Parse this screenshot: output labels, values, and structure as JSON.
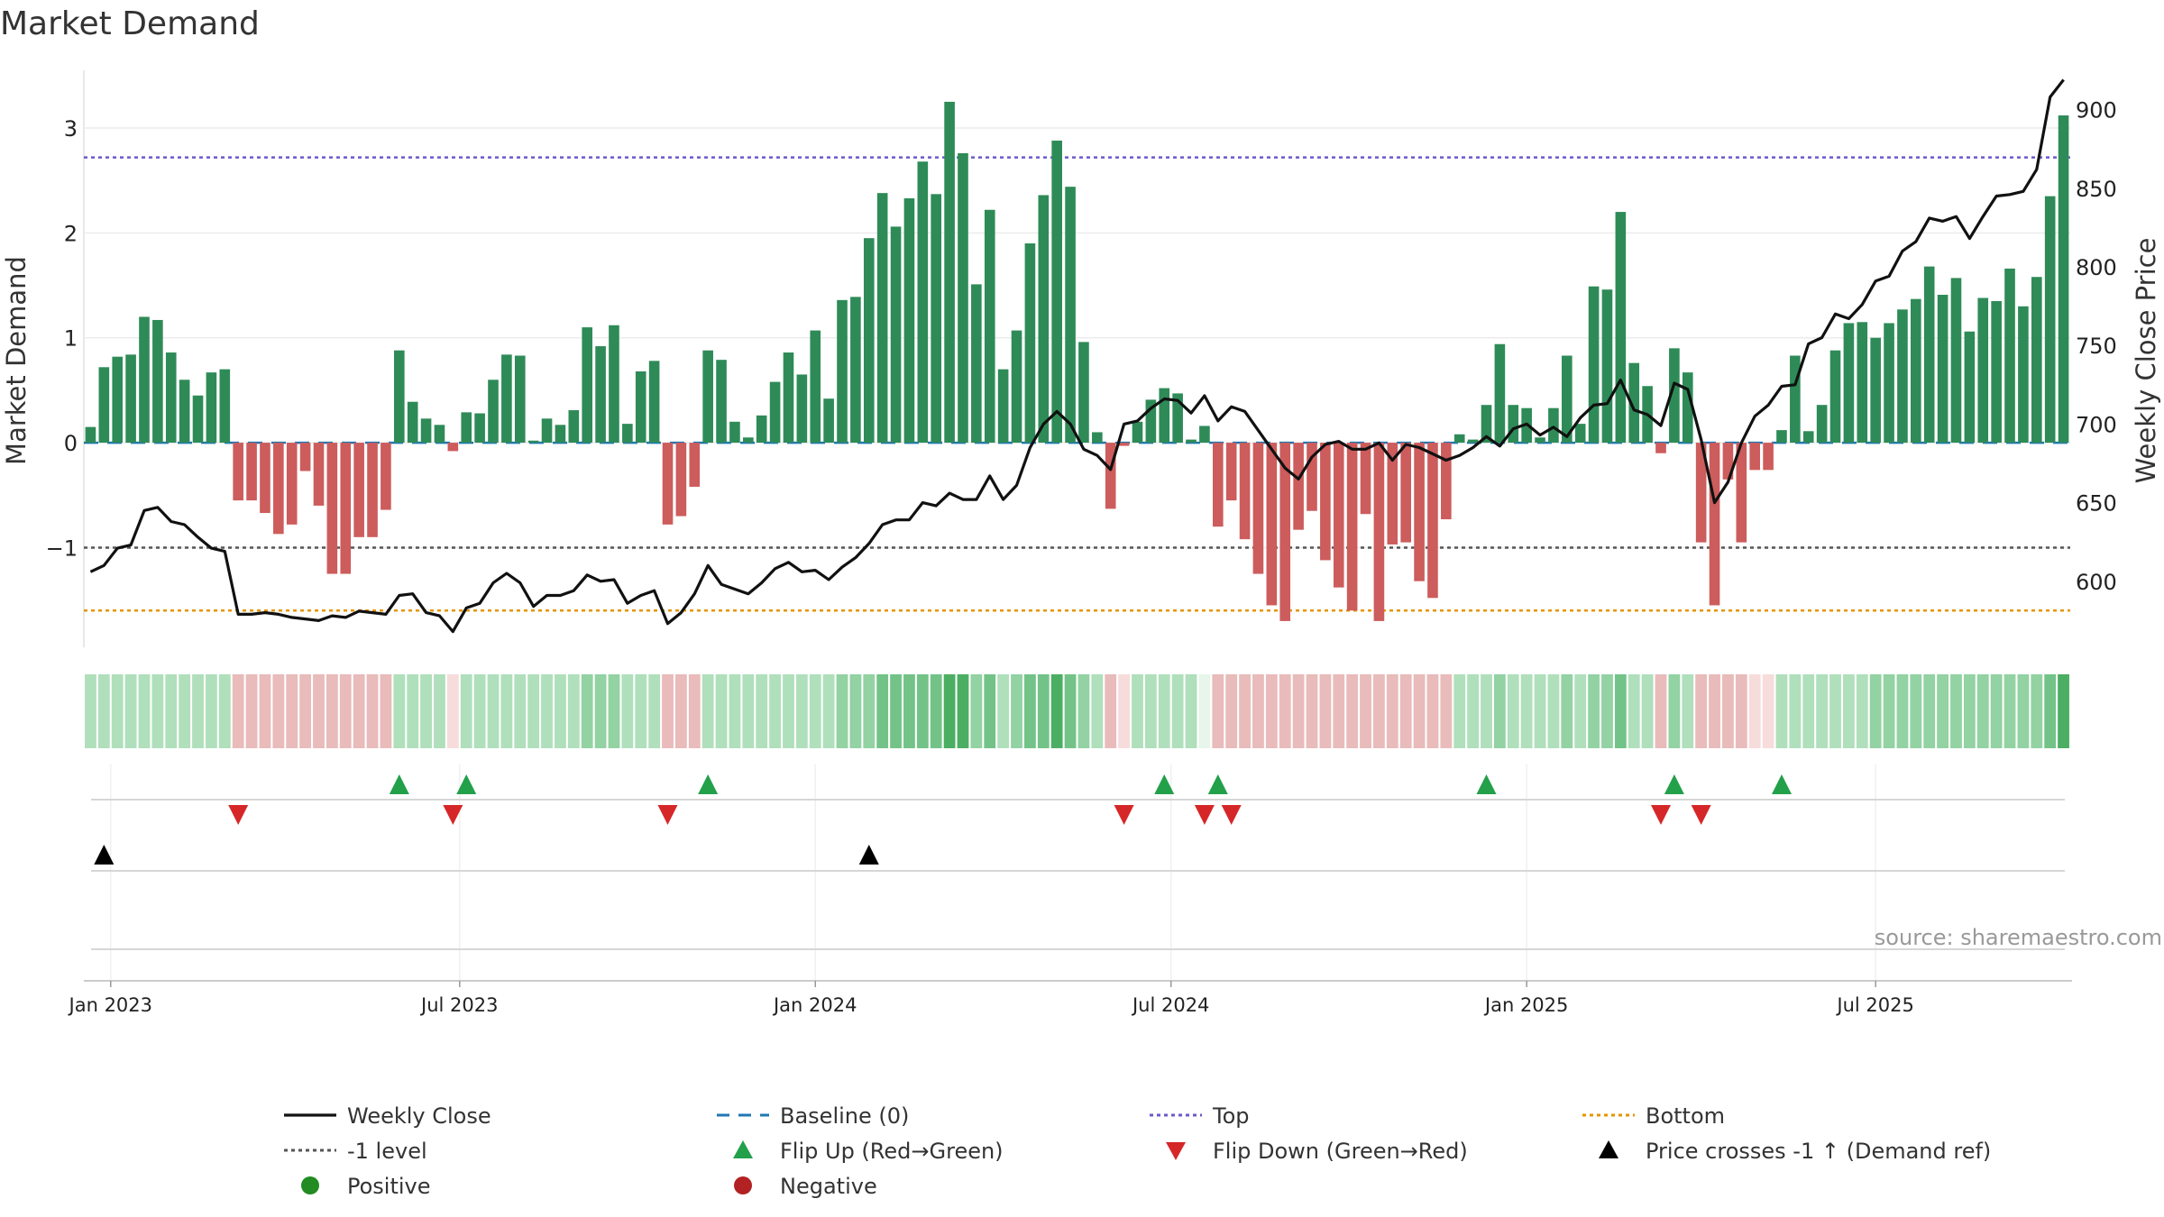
{
  "chart_data": {
    "type": "bar",
    "title": "Market Demand",
    "ylabel_left": "Market Demand",
    "ylabel_right": "Weekly Close Price",
    "ylim_left": [
      -1.95,
      3.55
    ],
    "ylim_right": [
      558,
      925
    ],
    "yticks_left": [
      -1,
      0,
      1,
      2,
      3
    ],
    "yticks_right": [
      600,
      650,
      700,
      750,
      800,
      850,
      900
    ],
    "date_ticks": [
      "Jan 2023",
      "Jul 2023",
      "Jan 2024",
      "Jul 2024",
      "Jan 2025",
      "Jul 2025"
    ],
    "reference_lines": {
      "top": 2.72,
      "level_minus_1": -1.0,
      "bottom": -1.6,
      "baseline": 0
    },
    "demand": [
      0.15,
      0.72,
      0.82,
      0.84,
      1.2,
      1.17,
      0.86,
      0.6,
      0.45,
      0.67,
      0.7,
      -0.55,
      -0.55,
      -0.67,
      -0.87,
      -0.78,
      -0.27,
      -0.6,
      -1.25,
      -1.25,
      -0.9,
      -0.9,
      -0.64,
      0.88,
      0.39,
      0.23,
      0.17,
      -0.08,
      0.29,
      0.28,
      0.6,
      0.84,
      0.83,
      0.02,
      0.23,
      0.17,
      0.31,
      1.1,
      0.92,
      1.12,
      0.18,
      0.68,
      0.78,
      -0.78,
      -0.7,
      -0.42,
      0.88,
      0.79,
      0.2,
      0.05,
      0.26,
      0.58,
      0.86,
      0.65,
      1.07,
      0.42,
      1.36,
      1.39,
      1.95,
      2.38,
      2.06,
      2.33,
      2.68,
      2.37,
      3.25,
      2.76,
      1.51,
      2.22,
      0.7,
      1.07,
      1.9,
      2.36,
      2.88,
      2.44,
      0.96,
      0.1,
      -0.63,
      -0.03,
      0.2,
      0.41,
      0.52,
      0.47,
      0.03,
      0.16,
      -0.8,
      -0.55,
      -0.92,
      -1.25,
      -1.55,
      -1.7,
      -0.83,
      -0.65,
      -1.12,
      -1.38,
      -1.6,
      -0.68,
      -1.7,
      -0.97,
      -0.95,
      -1.32,
      -1.48,
      -0.73,
      0.08,
      0.03,
      0.36,
      0.94,
      0.36,
      0.33,
      0.05,
      0.33,
      0.83,
      0.18,
      1.49,
      1.46,
      2.2,
      0.76,
      0.54,
      -0.1,
      0.9,
      0.67,
      -0.95,
      -1.55,
      -0.35,
      -0.95,
      -0.26,
      -0.26,
      0.12,
      0.83,
      0.11,
      0.36,
      0.88,
      1.14,
      1.15,
      1.0,
      1.14,
      1.27,
      1.37,
      1.68,
      1.41,
      1.57,
      1.06,
      1.38,
      1.35,
      1.66,
      1.3,
      1.58,
      2.35,
      3.12
    ],
    "price": [
      606,
      610,
      621,
      623,
      645,
      647,
      638,
      636,
      628,
      621,
      619,
      579,
      579,
      580,
      579,
      577,
      576,
      575,
      578,
      577,
      581,
      580,
      579,
      591,
      592,
      580,
      578,
      568,
      583,
      586,
      599,
      605,
      599,
      584,
      591,
      591,
      594,
      604,
      600,
      601,
      586,
      591,
      594,
      573,
      580,
      592,
      610,
      598,
      595,
      592,
      599,
      608,
      612,
      606,
      607,
      601,
      609,
      615,
      624,
      636,
      639,
      639,
      650,
      648,
      656,
      652,
      652,
      667,
      652,
      661,
      685,
      700,
      708,
      700,
      684,
      680,
      671,
      700,
      702,
      710,
      716,
      715,
      707,
      718,
      702,
      711,
      708,
      696,
      684,
      672,
      665,
      679,
      687,
      689,
      684,
      684,
      688,
      677,
      687,
      685,
      681,
      677,
      680,
      685,
      692,
      686,
      697,
      700,
      693,
      698,
      692,
      704,
      712,
      713,
      728,
      709,
      706,
      699,
      726,
      722,
      690,
      650,
      663,
      688,
      705,
      712,
      724,
      725,
      751,
      755,
      770,
      767,
      776,
      791,
      794,
      810,
      816,
      831,
      829,
      832,
      818,
      832,
      845,
      846,
      848,
      862,
      908,
      919
    ],
    "shade_levels": [
      2,
      2,
      2,
      2,
      2,
      2,
      2,
      2,
      2,
      2,
      2,
      1,
      1,
      1,
      1,
      1,
      1,
      1,
      1,
      1,
      1,
      1,
      1,
      2,
      2,
      2,
      2,
      0,
      2,
      2,
      2,
      2,
      2,
      2,
      2,
      2,
      2,
      3,
      3,
      3,
      2,
      2,
      2,
      1,
      1,
      1,
      2,
      2,
      2,
      2,
      2,
      2,
      2,
      2,
      2,
      2,
      3,
      3,
      3,
      4,
      4,
      4,
      4,
      4,
      5,
      5,
      3,
      4,
      2,
      3,
      4,
      4,
      5,
      4,
      3,
      2,
      1,
      0,
      2,
      2,
      2,
      2,
      2,
      0,
      1,
      1,
      1,
      1,
      1,
      1,
      1,
      1,
      1,
      1,
      1,
      1,
      1,
      1,
      1,
      1,
      1,
      1,
      2,
      2,
      2,
      3,
      2,
      2,
      2,
      2,
      3,
      2,
      3,
      3,
      4,
      2,
      2,
      1,
      3,
      2,
      1,
      1,
      1,
      1,
      0,
      0,
      2,
      2,
      2,
      2,
      2,
      2,
      2,
      3,
      3,
      3,
      3,
      3,
      3,
      3,
      3,
      3,
      3,
      3,
      3,
      3,
      4,
      5
    ],
    "flip_up_weeks": [
      23,
      28,
      46,
      80,
      84,
      104,
      118,
      126
    ],
    "flip_down_weeks": [
      11,
      27,
      43,
      77,
      83,
      85,
      117,
      120
    ],
    "price_cross_weeks": [
      1,
      58
    ],
    "source": "source: sharemaestro.com"
  },
  "legend": [
    {
      "label": "Weekly Close",
      "marker": "solid-line",
      "color": "#111111"
    },
    {
      "label": "Baseline (0)",
      "marker": "dashed-line",
      "color": "#1f77b4"
    },
    {
      "label": "Top",
      "marker": "dotted-line",
      "color": "#6a5acd"
    },
    {
      "label": "Bottom",
      "marker": "dotted-line",
      "color": "#e69500"
    },
    {
      "label": "-1 level",
      "marker": "dotted-line",
      "color": "#555555"
    },
    {
      "label": "Flip Up (Red→Green)",
      "marker": "triangle-up",
      "color": "#22a04a"
    },
    {
      "label": "Flip Down (Green→Red)",
      "marker": "triangle-down",
      "color": "#d62728"
    },
    {
      "label": "Price crosses -1 ↑ (Demand ref)",
      "marker": "triangle-up",
      "color": "#000000"
    },
    {
      "label": "Positive",
      "marker": "circle",
      "color": "#228b22"
    },
    {
      "label": "Negative",
      "marker": "circle",
      "color": "#b22222"
    }
  ],
  "colors": {
    "positive_bar": "#2e8b57",
    "negative_bar": "#cd5c5c",
    "price_line": "#111111",
    "baseline": "#1f77b4",
    "top_line": "#6a5acd",
    "bottom_line": "#e69500",
    "minus1_line": "#555555",
    "flip_up": "#22a04a",
    "flip_down": "#d62728",
    "price_cross": "#000000"
  }
}
